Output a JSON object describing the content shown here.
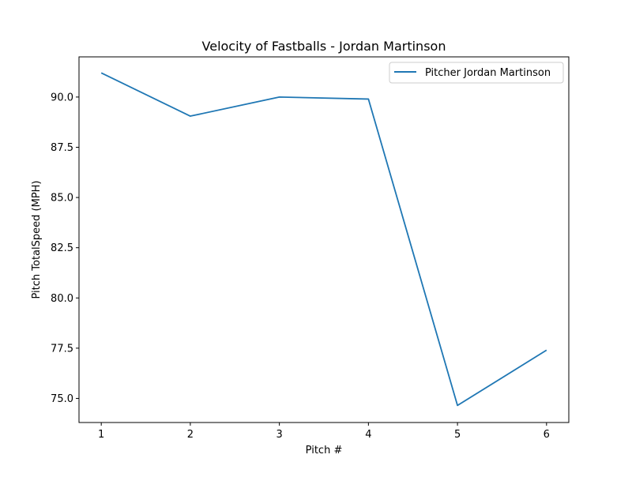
{
  "chart_data": {
    "type": "line",
    "title": "Velocity of Fastballs - Jordan Martinson",
    "xlabel": "Pitch #",
    "ylabel": "Pitch TotalSpeed (MPH)",
    "x": [
      1,
      2,
      3,
      4,
      5,
      6
    ],
    "x_ticks": [
      "1",
      "2",
      "3",
      "4",
      "5",
      "6"
    ],
    "y_ticks": [
      "75.0",
      "77.5",
      "80.0",
      "82.5",
      "85.0",
      "87.5",
      "90.0"
    ],
    "xlim": [
      0.75,
      6.25
    ],
    "ylim": [
      73.8,
      92.0
    ],
    "series": [
      {
        "name": "Pitcher Jordan Martinson",
        "color": "#1f77b4",
        "values": [
          91.2,
          89.05,
          90.0,
          89.9,
          74.65,
          77.4
        ]
      }
    ],
    "legend_position": "top-right",
    "grid": false
  }
}
